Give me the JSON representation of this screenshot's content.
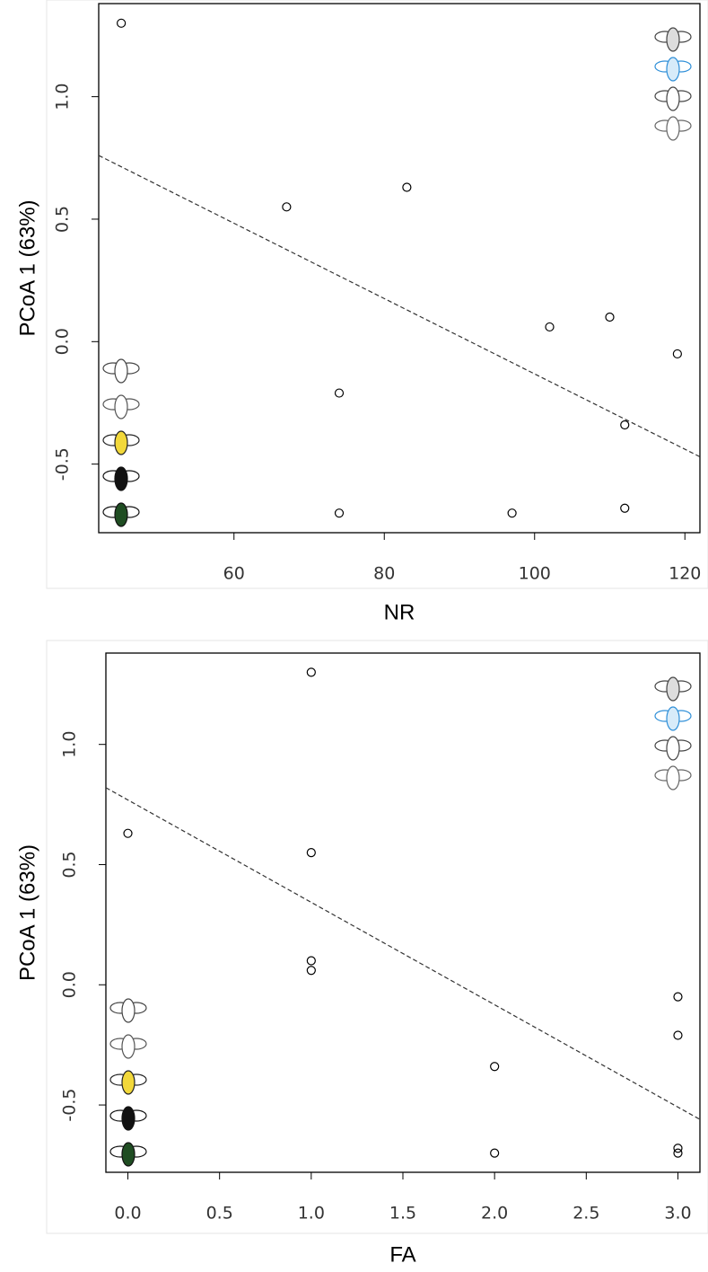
{
  "chart_data": [
    {
      "type": "scatter",
      "x_label": "NR",
      "y_label": "PCoA 1 (63%)",
      "series": [
        {
          "color": "#000000",
          "x": [
            45,
            67,
            83,
            74,
            74,
            97,
            102,
            110,
            119,
            112,
            112
          ],
          "values": [
            1.3,
            0.55,
            0.63,
            -0.21,
            -0.7,
            -0.7,
            0.06,
            0.1,
            -0.05,
            -0.34,
            -0.68
          ]
        }
      ],
      "trend_line": {
        "x": [
          42,
          122
        ],
        "y": [
          0.76,
          -0.47
        ]
      },
      "xlim": [
        42,
        122
      ],
      "xticks": [
        60,
        80,
        100,
        120
      ],
      "ylim": [
        -0.78,
        1.38
      ],
      "yticks": [
        -0.5,
        {
          "value": 0,
          "label": "0.0"
        },
        0.5,
        {
          "value": 1,
          "label": "1.0"
        }
      ]
    },
    {
      "type": "scatter",
      "x_label": "FA",
      "y_label": "PCoA 1 (63%)",
      "series": [
        {
          "color": "#000000",
          "x": [
            1,
            1,
            0,
            3,
            2,
            2,
            1,
            1,
            3,
            3,
            3
          ],
          "values": [
            1.3,
            0.55,
            0.63,
            -0.21,
            -0.7,
            -0.34,
            0.06,
            0.1,
            -0.05,
            -0.68,
            -0.7
          ]
        }
      ],
      "trend_line": {
        "x": [
          -0.12,
          3.12
        ],
        "y": [
          0.82,
          -0.56
        ]
      },
      "xlim": [
        -0.12,
        3.12
      ],
      "xticks": [
        {
          "value": 0,
          "label": "0.0"
        },
        0.5,
        {
          "value": 1,
          "label": "1.0"
        },
        1.5,
        {
          "value": 2,
          "label": "2.0"
        },
        2.5,
        {
          "value": 3,
          "label": "3.0"
        }
      ],
      "ylim": [
        -0.78,
        1.38
      ],
      "yticks": [
        -0.5,
        {
          "value": 0,
          "label": "0.0"
        },
        0.5,
        {
          "value": 1,
          "label": "1.0"
        }
      ]
    }
  ]
}
